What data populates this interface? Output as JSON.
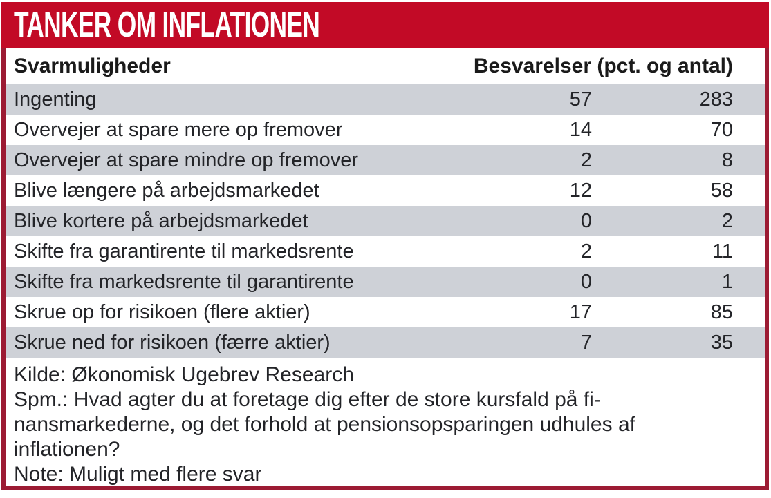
{
  "title": "TANKER OM INFLATIONEN",
  "table": {
    "header": {
      "label_col": "Svarmuligheder",
      "values_col": "Besvarelser (pct. og antal)"
    },
    "rows": [
      {
        "label": "Ingenting",
        "pct": "57",
        "antal": "283"
      },
      {
        "label": "Overvejer at spare mere op fremover",
        "pct": "14",
        "antal": "70"
      },
      {
        "label": "Overvejer at spare mindre op fremover",
        "pct": "2",
        "antal": "8"
      },
      {
        "label": "Blive længere på arbejdsmarkedet",
        "pct": "12",
        "antal": "58"
      },
      {
        "label": "Blive kortere på arbejdsmarkedet",
        "pct": "0",
        "antal": "2"
      },
      {
        "label": "Skifte fra garantirente til markedsrente",
        "pct": "2",
        "antal": "11"
      },
      {
        "label": "Skifte fra markedsrente til garantirente",
        "pct": "0",
        "antal": "1"
      },
      {
        "label": "Skrue op for risikoen (flere aktier)",
        "pct": "17",
        "antal": "85"
      },
      {
        "label": "Skrue ned for risikoen (færre aktier)",
        "pct": "7",
        "antal": "35"
      }
    ]
  },
  "footer": {
    "lines": [
      "Kilde: Økonomisk Ugebrev Research",
      "Spm.: Hvad agter du at foretage dig efter de store kursfald på fi-",
      "nansmarkederne, og det forhold at pensionsopsparingen udhules af",
      "inflationen?",
      "Note: Muligt med flere svar"
    ]
  },
  "colors": {
    "banner_red": "#C20A26",
    "border_red": "#9C1B33",
    "row_gray": "#CED1D7",
    "text": "#232428",
    "banner_text": "#ffffff"
  },
  "chart_data": {
    "type": "table",
    "title": "TANKER OM INFLATIONEN",
    "columns": [
      "Svarmuligheder",
      "Besvarelser (pct.)",
      "Besvarelser (antal)"
    ],
    "rows": [
      [
        "Ingenting",
        57,
        283
      ],
      [
        "Overvejer at spare mere op fremover",
        14,
        70
      ],
      [
        "Overvejer at spare mindre op fremover",
        2,
        8
      ],
      [
        "Blive længere på arbejdsmarkedet",
        12,
        58
      ],
      [
        "Blive kortere på arbejdsmarkedet",
        0,
        2
      ],
      [
        "Skifte fra garantirente til markedsrente",
        2,
        11
      ],
      [
        "Skifte fra markedsrente til garantirente",
        0,
        1
      ],
      [
        "Skrue op for risikoen (flere aktier)",
        17,
        85
      ],
      [
        "Skrue ned for risikoen (færre aktier)",
        7,
        35
      ]
    ],
    "source": "Kilde: Økonomisk Ugebrev Research",
    "question": "Spm.: Hvad agter du at foretage dig efter de store kursfald på finansmarkederne, og det forhold at pensionsopsparingen udhules af inflationen?",
    "note": "Note: Muligt med flere svar",
    "layout": {
      "striped": true,
      "stripe_color": "#CED1D7",
      "banner_color": "#C20A26",
      "frame_color": "#9C1B33"
    }
  }
}
